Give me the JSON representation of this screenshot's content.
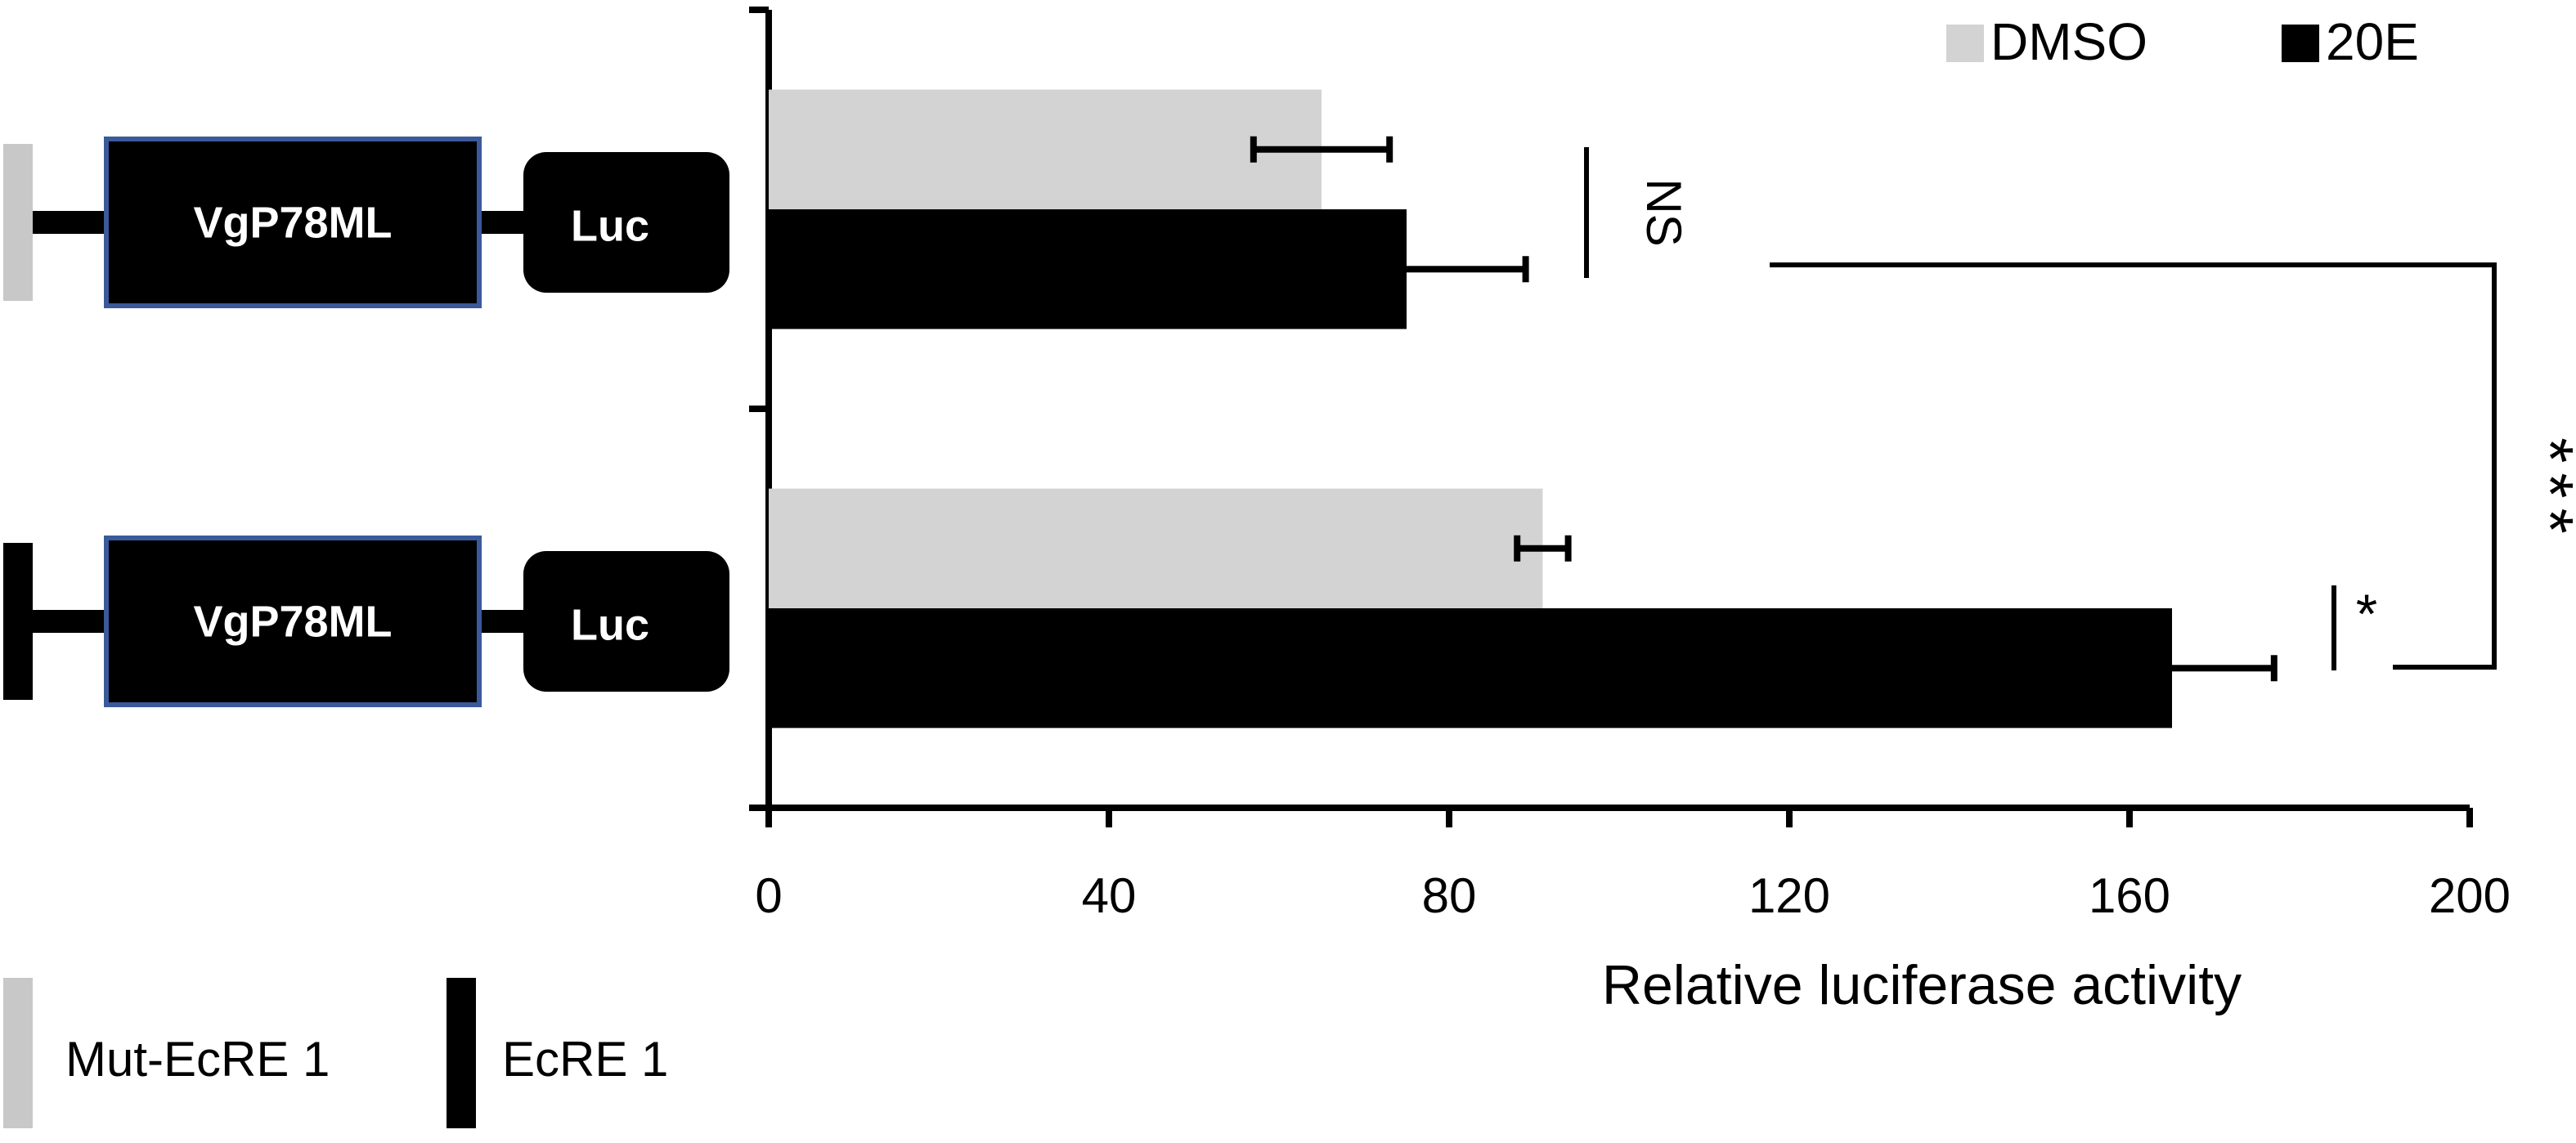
{
  "chart_data": {
    "type": "bar",
    "orientation": "horizontal",
    "categories": [
      null,
      null
    ],
    "series": [
      {
        "name": "DMSO",
        "color": "#d3d3d3",
        "values": [
          65,
          91
        ],
        "errors": [
          8,
          3
        ]
      },
      {
        "name": "20E",
        "color": "#000000",
        "values": [
          75,
          165
        ],
        "errors": [
          14,
          12
        ]
      }
    ],
    "xlim": [
      0,
      200
    ],
    "xticks": [
      0,
      40,
      80,
      120,
      160,
      200
    ],
    "xlabel": "Relative luciferase activity",
    "annotations": [
      "NS",
      "*",
      "***"
    ],
    "legend": "top-right",
    "grid": false
  },
  "diagram": {
    "constructs": [
      {
        "element_color": "#c8c8c8",
        "promoter": "VgP78ML",
        "reporter": "Luc"
      },
      {
        "element_color": "#000000",
        "promoter": "VgP78ML",
        "reporter": "Luc"
      }
    ],
    "legend": [
      {
        "label": "Mut-EcRE 1",
        "color": "#c8c8c8"
      },
      {
        "label": "EcRE 1",
        "color": "#000000"
      }
    ]
  }
}
